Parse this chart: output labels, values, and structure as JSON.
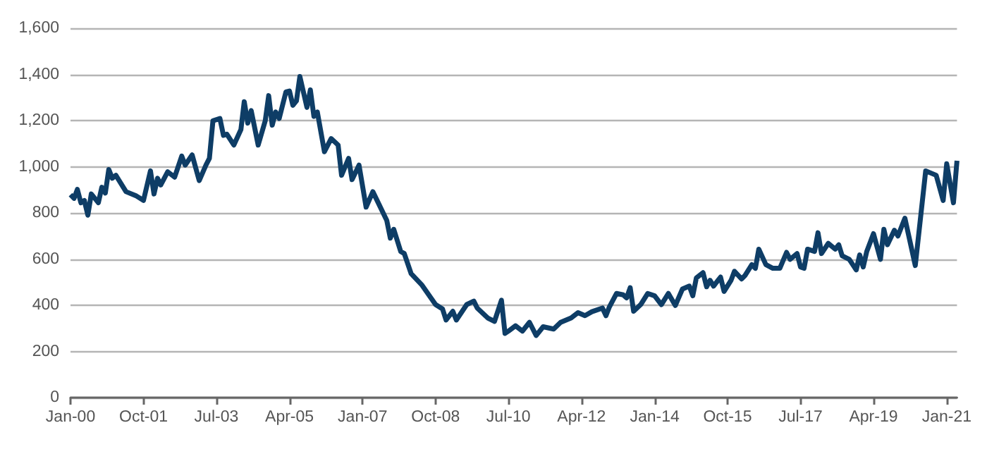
{
  "chart_data": {
    "type": "line",
    "x": [
      "2000-01",
      "2000-02",
      "2000-03",
      "2000-04",
      "2000-05",
      "2000-06",
      "2000-07",
      "2000-09",
      "2000-10",
      "2000-11",
      "2000-12",
      "2001-01",
      "2001-02",
      "2001-05",
      "2001-08",
      "2001-10",
      "2001-12",
      "2002-01",
      "2002-02",
      "2002-03",
      "2002-05",
      "2002-07",
      "2002-09",
      "2002-10",
      "2002-12",
      "2003-02",
      "2003-04",
      "2003-05",
      "2003-06",
      "2003-08",
      "2003-09",
      "2003-10",
      "2003-12",
      "2004-02",
      "2004-03",
      "2004-04",
      "2004-05",
      "2004-07",
      "2004-09",
      "2004-10",
      "2004-11",
      "2004-12",
      "2005-01",
      "2005-03",
      "2005-04",
      "2005-05",
      "2005-06",
      "2005-07",
      "2005-09",
      "2005-10",
      "2005-11",
      "2005-12",
      "2006-02",
      "2006-04",
      "2006-06",
      "2006-07",
      "2006-09",
      "2006-10",
      "2006-12",
      "2007-02",
      "2007-04",
      "2007-08",
      "2007-09",
      "2007-10",
      "2007-12",
      "2008-01",
      "2008-03",
      "2008-06",
      "2008-10",
      "2008-12",
      "2009-01",
      "2009-03",
      "2009-04",
      "2009-07",
      "2009-09",
      "2009-10",
      "2010-01",
      "2010-03",
      "2010-05",
      "2010-06",
      "2010-07",
      "2010-09",
      "2010-11",
      "2011-01",
      "2011-03",
      "2011-05",
      "2011-08",
      "2011-10",
      "2012-01",
      "2012-03",
      "2012-05",
      "2012-07",
      "2012-10",
      "2012-11",
      "2012-12",
      "2013-02",
      "2013-04",
      "2013-05",
      "2013-06",
      "2013-07",
      "2013-09",
      "2013-11",
      "2014-01",
      "2014-03",
      "2014-05",
      "2014-07",
      "2014-09",
      "2014-11",
      "2014-12",
      "2015-01",
      "2015-03",
      "2015-04",
      "2015-05",
      "2015-06",
      "2015-08",
      "2015-09",
      "2015-11",
      "2015-12",
      "2016-02",
      "2016-03",
      "2016-05",
      "2016-06",
      "2016-07",
      "2016-09",
      "2016-11",
      "2017-01",
      "2017-03",
      "2017-04",
      "2017-06",
      "2017-07",
      "2017-08",
      "2017-09",
      "2017-11",
      "2017-12",
      "2018-01",
      "2018-03",
      "2018-05",
      "2018-06",
      "2018-07",
      "2018-09",
      "2018-11",
      "2018-12",
      "2019-01",
      "2019-02",
      "2019-04",
      "2019-06",
      "2019-07",
      "2019-08",
      "2019-10",
      "2019-11",
      "2020-01",
      "2020-04",
      "2020-07",
      "2020-10",
      "2020-12",
      "2021-01",
      "2021-03",
      "2021-04"
    ],
    "series": [
      {
        "color": "#0e3d66",
        "values": [
          879,
          863,
          902,
          844,
          854,
          790,
          882,
          844,
          911,
          886,
          988,
          950,
          963,
          892,
          873,
          854,
          982,
          882,
          950,
          921,
          978,
          955,
          1046,
          1007,
          1051,
          940,
          1007,
          1036,
          1199,
          1209,
          1136,
          1141,
          1094,
          1161,
          1282,
          1189,
          1243,
          1094,
          1199,
          1308,
          1180,
          1237,
          1209,
          1324,
          1328,
          1266,
          1285,
          1391,
          1257,
          1333,
          1218,
          1237,
          1065,
          1122,
          1094,
          963,
          1036,
          944,
          1007,
          825,
          892,
          767,
          691,
          729,
          633,
          624,
          537,
          489,
          403,
          384,
          336,
          374,
          336,
          403,
          418,
          388,
          345,
          330,
          422,
          278,
          288,
          311,
          288,
          326,
          269,
          307,
          297,
          326,
          345,
          368,
          355,
          372,
          388,
          355,
          393,
          451,
          445,
          432,
          476,
          374,
          403,
          451,
          441,
          403,
          451,
          399,
          470,
          483,
          441,
          518,
          541,
          480,
          508,
          483,
          522,
          460,
          508,
          547,
          514,
          528,
          576,
          560,
          643,
          576,
          560,
          560,
          629,
          599,
          624,
          566,
          560,
          643,
          633,
          714,
          624,
          668,
          643,
          662,
          614,
          599,
          553,
          618,
          566,
          633,
          710,
          599,
          729,
          662,
          725,
          700,
          777,
          572,
          982,
          963,
          854,
          1013,
          844,
          1026
        ]
      }
    ],
    "xlim": [
      "2000-01",
      "2021-04"
    ],
    "xticks": [
      {
        "value": "2000-01",
        "label": "Jan-00"
      },
      {
        "value": "2001-10",
        "label": "Oct-01"
      },
      {
        "value": "2003-07",
        "label": "Jul-03"
      },
      {
        "value": "2005-04",
        "label": "Apr-05"
      },
      {
        "value": "2007-01",
        "label": "Jan-07"
      },
      {
        "value": "2008-10",
        "label": "Oct-08"
      },
      {
        "value": "2010-07",
        "label": "Jul-10"
      },
      {
        "value": "2012-04",
        "label": "Apr-12"
      },
      {
        "value": "2014-01",
        "label": "Jan-14"
      },
      {
        "value": "2015-10",
        "label": "Oct-15"
      },
      {
        "value": "2017-07",
        "label": "Jul-17"
      },
      {
        "value": "2019-04",
        "label": "Apr-19"
      },
      {
        "value": "2021-01",
        "label": "Jan-21"
      }
    ],
    "ylim": [
      0,
      1600
    ],
    "yticks": [
      0,
      200,
      400,
      600,
      800,
      {
        "value": 1000,
        "label": "1,000"
      },
      {
        "value": 1200,
        "label": "1,200"
      },
      {
        "value": 1400,
        "label": "1,400"
      },
      {
        "value": 1600,
        "label": "1,600"
      }
    ],
    "grid": "y"
  }
}
